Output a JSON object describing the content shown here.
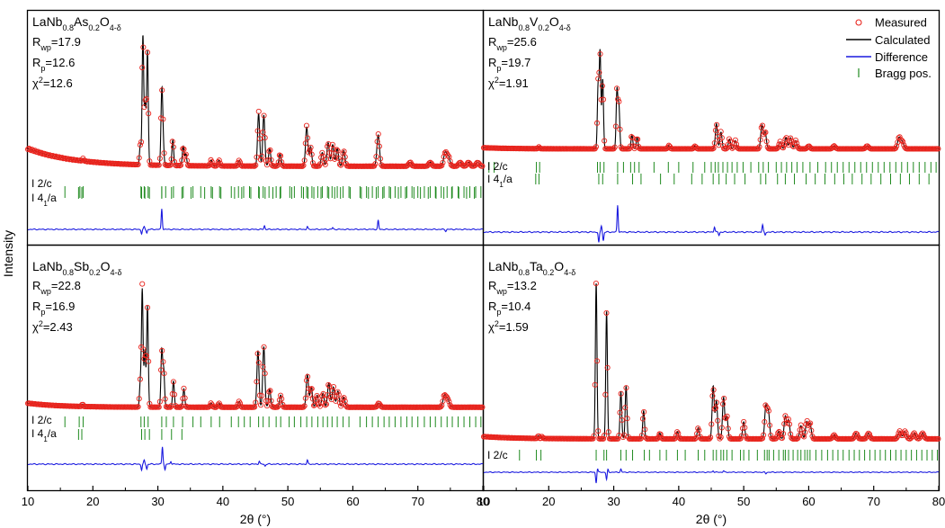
{
  "figure": {
    "ylabel": "Intensity",
    "xlabel": "2θ (°)",
    "legend": {
      "placement": "top-right of top-right panel",
      "items": [
        {
          "label": "Measured",
          "marker": "open-circle",
          "color": "#e8231c"
        },
        {
          "label": "Calculated",
          "marker": "line",
          "color": "#000000"
        },
        {
          "label": "Difference",
          "marker": "line",
          "color": "#1a1adf"
        },
        {
          "label": "Bragg pos.",
          "marker": "tick",
          "color": "#1f8a1f"
        }
      ]
    }
  },
  "panels": [
    {
      "title_base": "LaNb",
      "title_parts": [
        {
          "t": "LaNb",
          "sub": false
        },
        {
          "t": "0.8",
          "sub": true
        },
        {
          "t": "As",
          "sub": false
        },
        {
          "t": "0.2",
          "sub": true
        },
        {
          "t": "O",
          "sub": false
        },
        {
          "t": "4-δ",
          "sub": true
        }
      ],
      "stats": {
        "rwp": "=17.9",
        "rp": "=12.6",
        "chi2": "=12.6"
      },
      "phases": [
        "I 2/c",
        "I 4",
        "/a"
      ],
      "phase_labels": [
        "I 2/c",
        "I 41/a"
      ]
    },
    {
      "title_parts": [
        {
          "t": "LaNb",
          "sub": false
        },
        {
          "t": "0.8",
          "sub": true
        },
        {
          "t": "V",
          "sub": false
        },
        {
          "t": "0.2",
          "sub": true
        },
        {
          "t": "O",
          "sub": false
        },
        {
          "t": "4-δ",
          "sub": true
        }
      ],
      "stats": {
        "rwp": "=25.6",
        "rp": "=19.7",
        "chi2": "=1.91"
      },
      "phase_labels": [
        "I 2/c",
        "I 41/a"
      ]
    },
    {
      "title_parts": [
        {
          "t": "LaNb",
          "sub": false
        },
        {
          "t": "0.8",
          "sub": true
        },
        {
          "t": "Sb",
          "sub": false
        },
        {
          "t": "0.2",
          "sub": true
        },
        {
          "t": "O",
          "sub": false
        },
        {
          "t": "4-δ",
          "sub": true
        }
      ],
      "stats": {
        "rwp": "=22.8",
        "rp": "=16.9",
        "chi2": "=2.43"
      },
      "phase_labels": [
        "I 2/c",
        "I 41/a"
      ]
    },
    {
      "title_parts": [
        {
          "t": "LaNb",
          "sub": false
        },
        {
          "t": "0.8",
          "sub": true
        },
        {
          "t": "Ta",
          "sub": false
        },
        {
          "t": "0.2",
          "sub": true
        },
        {
          "t": "O",
          "sub": false
        },
        {
          "t": "4-δ",
          "sub": true
        }
      ],
      "stats": {
        "rwp": "=13.2",
        "rp": "=10.4",
        "chi2": "=1.59"
      },
      "phase_labels": [
        "I 2/c"
      ]
    }
  ],
  "chart_data": {
    "type": "line",
    "xlabel": "2θ (°)",
    "ylabel": "Intensity",
    "xlim_left": [
      10,
      80
    ],
    "xlim_right": [
      10,
      80
    ],
    "xticks_left": [
      10,
      20,
      30,
      40,
      50,
      60,
      70,
      80
    ],
    "xticks_right": [
      10,
      20,
      30,
      40,
      50,
      60,
      70,
      80
    ],
    "grid": false,
    "legend_placement": "top-right",
    "panels": [
      {
        "name": "LaNb0.8As0.2O4-δ",
        "background": {
          "start": 9,
          "decay": 7,
          "base": 1
        },
        "peaks": [
          [
            18.5,
            1.2
          ],
          [
            27.3,
            10
          ],
          [
            27.7,
            66
          ],
          [
            28.05,
            30
          ],
          [
            28.4,
            58
          ],
          [
            30.6,
            36
          ],
          [
            30.8,
            12
          ],
          [
            32.3,
            13
          ],
          [
            33.9,
            10
          ],
          [
            34.3,
            6
          ],
          [
            38.2,
            3
          ],
          [
            39.4,
            3
          ],
          [
            42.5,
            3
          ],
          [
            45.5,
            27
          ],
          [
            46.3,
            26
          ],
          [
            47.2,
            9
          ],
          [
            48.8,
            6
          ],
          [
            52.9,
            20
          ],
          [
            53.5,
            10
          ],
          [
            55.3,
            7
          ],
          [
            56.2,
            12
          ],
          [
            56.9,
            11
          ],
          [
            57.6,
            9
          ],
          [
            58.6,
            8
          ],
          [
            63.9,
            16
          ],
          [
            68.8,
            2
          ],
          [
            71.9,
            2
          ],
          [
            74.2,
            7
          ],
          [
            74.7,
            5
          ],
          [
            76.5,
            2
          ],
          [
            77.8,
            2
          ],
          [
            79.2,
            2
          ]
        ],
        "diff": [
          [
            27.5,
            -5
          ],
          [
            27.9,
            3
          ],
          [
            28.3,
            -4
          ],
          [
            30.6,
            23
          ],
          [
            46.4,
            4
          ],
          [
            53.0,
            3
          ],
          [
            56.9,
            2
          ],
          [
            63.9,
            10
          ],
          [
            74.3,
            -2
          ]
        ],
        "bragg": [
          [
            15.7,
            18.0,
            18.5,
            27.4,
            27.9,
            28.5,
            30.6,
            31.2,
            32.4,
            33.9,
            35.4,
            36.6,
            38.2,
            39.5,
            41.3,
            42.4,
            43.2,
            44.1,
            45.5,
            46.2,
            47.1,
            48.2,
            48.9,
            50.3,
            51.0,
            52.1,
            52.9,
            53.7,
            54.6,
            55.3,
            56.1,
            56.8,
            57.6,
            58.5,
            59.4,
            61.1,
            62.1,
            63.0,
            63.9,
            64.8,
            65.6,
            66.5,
            67.4,
            68.3,
            69.1,
            70.0,
            71.0,
            71.9,
            72.7,
            73.6,
            74.5,
            75.3,
            76.2,
            77.1,
            78.0,
            78.9,
            79.7
          ],
          [
            17.8,
            18.3,
            27.5,
            28.0,
            28.7,
            30.6,
            32.1,
            33.7,
            35.1,
            37.2,
            38.4,
            39.7,
            41.8,
            42.9,
            44.3,
            45.6,
            46.5,
            47.7,
            48.8,
            50.6,
            52.4,
            53.1,
            54.0,
            55.1,
            56.3,
            57.2,
            58.1,
            59.6,
            61.3,
            62.4,
            63.6,
            64.6,
            65.8,
            67.0,
            68.1,
            69.4,
            70.4,
            71.6,
            72.8,
            74.0,
            75.2,
            76.3,
            77.5,
            78.7
          ]
        ]
      },
      {
        "name": "LaNb0.8V0.2O4-δ",
        "background": {
          "start": 0.8,
          "decay": 4,
          "base": 1
        },
        "peaks": [
          [
            18.5,
            1.2
          ],
          [
            27.6,
            45
          ],
          [
            27.9,
            69
          ],
          [
            28.3,
            50
          ],
          [
            30.5,
            42
          ],
          [
            30.8,
            30
          ],
          [
            32.8,
            10
          ],
          [
            33.6,
            8
          ],
          [
            38.5,
            2.5
          ],
          [
            42.5,
            2
          ],
          [
            45.8,
            18
          ],
          [
            46.5,
            12
          ],
          [
            47.8,
            7
          ],
          [
            48.7,
            6
          ],
          [
            52.8,
            17
          ],
          [
            53.3,
            12
          ],
          [
            55.6,
            5
          ],
          [
            56.5,
            8
          ],
          [
            57.2,
            8
          ],
          [
            58.0,
            6
          ],
          [
            60.0,
            2
          ],
          [
            63.9,
            2
          ],
          [
            69.0,
            2
          ],
          [
            73.9,
            8
          ],
          [
            74.4,
            5
          ]
        ],
        "diff": [
          [
            27.7,
            -10
          ],
          [
            28.1,
            6
          ],
          [
            28.4,
            -8
          ],
          [
            30.6,
            25
          ],
          [
            45.5,
            5
          ],
          [
            46.2,
            -3
          ],
          [
            52.9,
            7
          ],
          [
            53.3,
            -3
          ]
        ],
        "bragg": [
          [
            10.8,
            11.6,
            18.1,
            18.6,
            27.5,
            27.9,
            28.5,
            30.6,
            31.5,
            32.6,
            33.2,
            33.9,
            36.2,
            38.4,
            40.0,
            42.2,
            44.0,
            45.0,
            45.6,
            46.1,
            46.8,
            47.5,
            48.2,
            49.0,
            49.9,
            51.1,
            52.3,
            53.0,
            53.8,
            55.0,
            55.8,
            56.6,
            57.4,
            58.2,
            59.1,
            60.2,
            61.4,
            62.6,
            63.5,
            64.4,
            65.3,
            66.2,
            67.1,
            68.0,
            68.9,
            69.8,
            70.7,
            71.6,
            72.5,
            73.4,
            74.3,
            75.2,
            76.1,
            77.0,
            77.9,
            78.8,
            79.6
          ],
          [
            18.0,
            18.5,
            27.7,
            28.3,
            30.6,
            32.9,
            34.2,
            37.2,
            39.3,
            42.0,
            43.6,
            45.3,
            46.2,
            47.3,
            48.6,
            50.2,
            52.6,
            53.4,
            55.2,
            56.4,
            57.8,
            59.6,
            61.0,
            62.5,
            64.0,
            65.4,
            66.7,
            68.2,
            69.6,
            71.1,
            72.6,
            74.1,
            75.5,
            77.0,
            78.5
          ]
        ]
      },
      {
        "name": "LaNb0.8Sb0.2O4-δ",
        "background": {
          "start": 2,
          "decay": 5,
          "base": 1
        },
        "peaks": [
          [
            18.4,
            1.2
          ],
          [
            27.3,
            12
          ],
          [
            27.6,
            58
          ],
          [
            28.0,
            28
          ],
          [
            28.4,
            50
          ],
          [
            30.6,
            28
          ],
          [
            30.9,
            18
          ],
          [
            32.4,
            13
          ],
          [
            34.0,
            9
          ],
          [
            38.2,
            2
          ],
          [
            39.4,
            2
          ],
          [
            42.5,
            3
          ],
          [
            45.4,
            28
          ],
          [
            46.3,
            30
          ],
          [
            47.2,
            9
          ],
          [
            48.9,
            6
          ],
          [
            53.0,
            16
          ],
          [
            53.6,
            10
          ],
          [
            54.5,
            6
          ],
          [
            55.4,
            7
          ],
          [
            56.3,
            12
          ],
          [
            57.0,
            10
          ],
          [
            57.7,
            8
          ],
          [
            58.6,
            5
          ],
          [
            64.0,
            2
          ],
          [
            74.1,
            6
          ],
          [
            74.6,
            4
          ]
        ],
        "diff": [
          [
            27.5,
            -6
          ],
          [
            27.9,
            4
          ],
          [
            28.3,
            -5
          ],
          [
            30.7,
            18
          ],
          [
            31.1,
            -6
          ],
          [
            32.0,
            3
          ],
          [
            45.6,
            3
          ],
          [
            46.5,
            -2
          ],
          [
            53.0,
            4
          ]
        ],
        "bragg": [
          [
            15.7,
            17.9,
            18.5,
            27.4,
            27.9,
            28.5,
            30.6,
            31.3,
            32.4,
            33.8,
            35.4,
            36.6,
            38.2,
            39.5,
            41.3,
            42.4,
            43.3,
            44.2,
            45.5,
            46.2,
            47.1,
            48.2,
            48.9,
            50.2,
            51.0,
            52.0,
            52.9,
            53.7,
            54.6,
            55.4,
            56.1,
            56.8,
            57.6,
            58.5,
            59.4,
            61.1,
            62.1,
            63.0,
            63.9,
            64.8,
            65.6,
            66.5,
            67.4,
            68.3,
            69.1,
            70.0,
            71.0,
            71.9,
            72.7,
            73.6,
            74.5,
            75.3,
            76.2,
            77.1,
            78.0,
            78.9,
            79.7
          ],
          [
            17.8,
            18.3,
            27.5,
            28.0,
            28.7,
            30.6,
            32.1,
            33.7
          ]
        ]
      },
      {
        "name": "LaNb0.8Ta0.2O4-δ",
        "background": {
          "start": 1.2,
          "decay": 5,
          "base": 1
        },
        "peaks": [
          [
            18.4,
            1.5
          ],
          [
            19.0,
            1
          ],
          [
            27.3,
            83
          ],
          [
            28.9,
            68
          ],
          [
            31.1,
            25
          ],
          [
            31.9,
            28
          ],
          [
            34.6,
            15
          ],
          [
            37.1,
            3
          ],
          [
            39.8,
            4
          ],
          [
            43.0,
            6
          ],
          [
            45.3,
            28
          ],
          [
            45.8,
            20
          ],
          [
            46.9,
            22
          ],
          [
            47.4,
            12
          ],
          [
            50.0,
            9
          ],
          [
            53.4,
            17
          ],
          [
            53.8,
            14
          ],
          [
            55.4,
            4
          ],
          [
            56.4,
            12
          ],
          [
            56.9,
            10
          ],
          [
            58.8,
            7
          ],
          [
            59.7,
            9
          ],
          [
            60.2,
            8
          ],
          [
            63.9,
            2
          ],
          [
            67.3,
            3
          ],
          [
            69.2,
            3
          ],
          [
            74.0,
            4
          ],
          [
            74.8,
            4
          ],
          [
            76.2,
            3
          ],
          [
            77.5,
            3
          ]
        ],
        "diff": [
          [
            27.3,
            -14
          ],
          [
            27.5,
            5
          ],
          [
            28.9,
            -10
          ],
          [
            29.1,
            4
          ],
          [
            31.1,
            4
          ],
          [
            45.3,
            2
          ],
          [
            46.9,
            2
          ],
          [
            53.4,
            -2
          ]
        ],
        "bragg": [
          [
            15.5,
            18.1,
            18.8,
            27.3,
            28.5,
            28.9,
            31.1,
            31.9,
            32.9,
            34.7,
            35.5,
            37.1,
            38.1,
            39.8,
            41.0,
            43.0,
            44.0,
            45.3,
            45.8,
            46.5,
            46.9,
            47.4,
            48.2,
            49.5,
            50.0,
            50.8,
            52.1,
            53.2,
            53.6,
            53.9,
            54.6,
            55.4,
            56.1,
            56.4,
            56.9,
            57.6,
            58.3,
            58.8,
            59.4,
            59.8,
            60.2,
            61.1,
            62.0,
            62.9,
            63.7,
            64.5,
            65.3,
            66.2,
            67.0,
            67.8,
            68.6,
            69.4,
            70.2,
            71.0,
            71.8,
            72.6,
            73.4,
            74.2,
            75.0,
            75.8,
            76.6,
            77.4,
            78.2,
            79.0,
            79.8
          ]
        ]
      }
    ]
  }
}
